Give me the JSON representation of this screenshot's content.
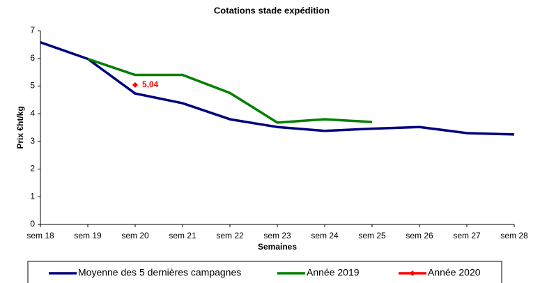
{
  "chart_data": {
    "type": "line",
    "title": "Cotations stade expédition",
    "x_label": "Semaines",
    "y_label": "Prix €ht/kg",
    "categories": [
      "sem 18",
      "sem 19",
      "sem 20",
      "sem 21",
      "sem 22",
      "sem 23",
      "sem 24",
      "sem 25",
      "sem 26",
      "sem 27",
      "sem 28"
    ],
    "ylim": [
      0,
      7
    ],
    "yticks": [
      0,
      1,
      2,
      3,
      4,
      5,
      6,
      7
    ],
    "grid": false,
    "series": [
      {
        "name": "Moyenne des 5 dernières campagnes",
        "color": "#000080",
        "values": [
          6.58,
          5.98,
          4.73,
          4.38,
          3.8,
          3.52,
          3.38,
          3.46,
          3.52,
          3.3,
          3.25
        ]
      },
      {
        "name": "Année 2019",
        "color": "#008000",
        "values": [
          null,
          5.98,
          5.4,
          5.4,
          4.75,
          3.68,
          3.8,
          3.7,
          null,
          null,
          null
        ]
      },
      {
        "name": "Année 2020",
        "color": "#ff0000",
        "values": [
          null,
          null,
          5.04,
          null,
          null,
          null,
          null,
          null,
          null,
          null,
          null
        ],
        "value_labels": [
          null,
          null,
          "5,04",
          null,
          null,
          null,
          null,
          null,
          null,
          null,
          null
        ]
      }
    ]
  }
}
